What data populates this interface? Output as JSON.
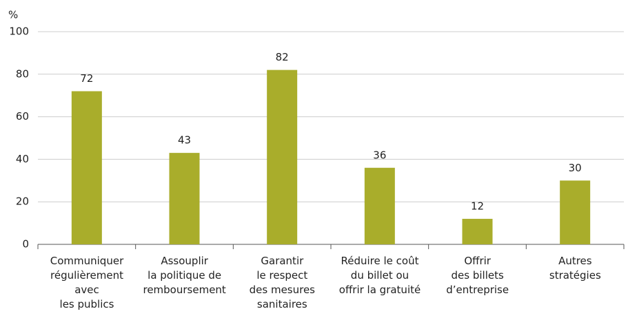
{
  "chart_data": {
    "type": "bar",
    "y_unit": "%",
    "categories": [
      "Communiquer\nrégulièrement\navec\nles publics",
      "Assouplir\nla politique de\nremboursement",
      "Garantir\nle respect\ndes mesures\nsanitaires",
      "Réduire le coût\ndu billet ou\noffrir la gratuité",
      "Offrir\ndes billets\nd’entreprise",
      "Autres\nstratégies"
    ],
    "values": [
      72,
      43,
      82,
      36,
      12,
      30
    ],
    "color": "#a9ad2b",
    "ylim": [
      0,
      100
    ],
    "yticks": [
      0,
      20,
      40,
      60,
      80,
      100
    ],
    "grid": true
  }
}
